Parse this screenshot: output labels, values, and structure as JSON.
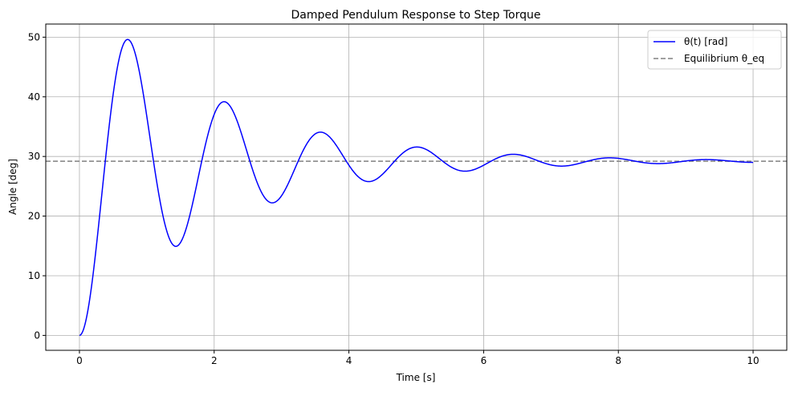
{
  "chart_data": {
    "type": "line",
    "title": "Damped Pendulum Response to Step Torque",
    "xlabel": "Time [s]",
    "ylabel": "Angle [deg]",
    "xlim": [
      -0.5,
      10.5
    ],
    "ylim": [
      -2.5,
      52.2
    ],
    "xticks": [
      0,
      2,
      4,
      6,
      8,
      10
    ],
    "yticks": [
      0,
      10,
      20,
      30,
      40,
      50
    ],
    "grid": true,
    "legend_position": "top-right",
    "series": [
      {
        "name": "θ(t) [rad]",
        "color": "#0000ff",
        "style": "solid",
        "model": {
          "equilibrium": 29.2,
          "decay_rate": 0.5,
          "damped_frequency": 4.39,
          "t_start": 0,
          "t_end": 10
        },
        "key_points": [
          {
            "x": 0,
            "y": 0
          },
          {
            "x": 0.71,
            "y": 49.6
          },
          {
            "x": 1.43,
            "y": 15.0
          },
          {
            "x": 2.14,
            "y": 39.2
          },
          {
            "x": 2.85,
            "y": 22.2
          },
          {
            "x": 3.57,
            "y": 34.1
          },
          {
            "x": 4.28,
            "y": 25.8
          },
          {
            "x": 5.0,
            "y": 31.6
          },
          {
            "x": 5.71,
            "y": 27.5
          },
          {
            "x": 6.43,
            "y": 30.4
          },
          {
            "x": 7.14,
            "y": 28.4
          },
          {
            "x": 7.86,
            "y": 29.8
          },
          {
            "x": 8.57,
            "y": 28.8
          },
          {
            "x": 9.28,
            "y": 29.4
          },
          {
            "x": 10,
            "y": 29.0
          }
        ]
      },
      {
        "name": "Equilibrium θ_eq",
        "color": "#808080",
        "style": "dashed",
        "y": 29.2
      }
    ]
  }
}
